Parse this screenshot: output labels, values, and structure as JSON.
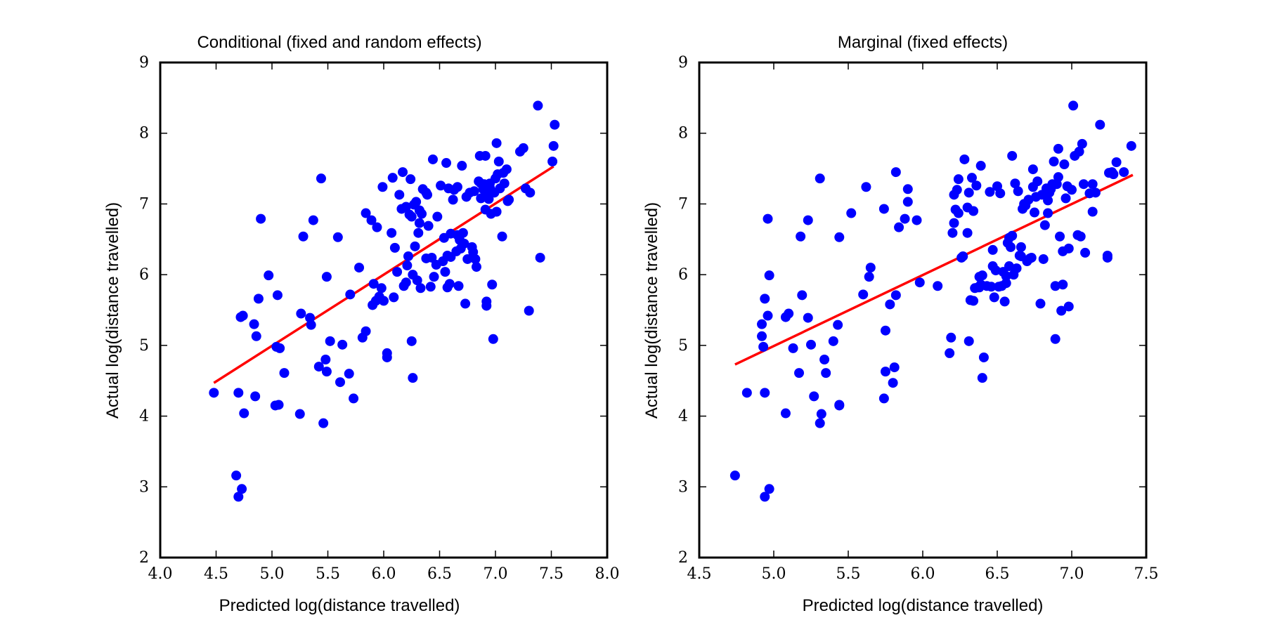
{
  "colors": {
    "points": "#0000ff",
    "fit_line": "#ff0000",
    "axes": "#000000"
  },
  "chart_data": [
    {
      "type": "scatter",
      "title": "Conditional (fixed and random effects)",
      "xlabel": "Predicted log(distance travelled)",
      "ylabel": "Actual log(distance travelled)",
      "xlim": [
        4.0,
        8.0
      ],
      "ylim": [
        2,
        9
      ],
      "xticks": [
        "4.0",
        "4.5",
        "5.0",
        "5.5",
        "6.0",
        "6.5",
        "7.0",
        "7.5",
        "8.0"
      ],
      "yticks": [
        "2",
        "3",
        "4",
        "5",
        "6",
        "7",
        "8",
        "9"
      ],
      "grid": false,
      "fit_line": {
        "x": [
          4.48,
          7.52
        ],
        "y": [
          4.47,
          7.53
        ]
      },
      "points": [
        [
          4.48,
          4.33
        ],
        [
          4.68,
          3.16
        ],
        [
          4.7,
          2.86
        ],
        [
          4.73,
          2.97
        ],
        [
          4.7,
          4.33
        ],
        [
          4.75,
          4.04
        ],
        [
          4.72,
          5.4
        ],
        [
          4.74,
          5.42
        ],
        [
          4.85,
          4.28
        ],
        [
          4.84,
          5.3
        ],
        [
          4.86,
          5.13
        ],
        [
          4.88,
          5.66
        ],
        [
          4.9,
          6.79
        ],
        [
          4.97,
          5.99
        ],
        [
          5.03,
          4.15
        ],
        [
          5.06,
          4.16
        ],
        [
          5.04,
          4.98
        ],
        [
          5.07,
          4.96
        ],
        [
          5.05,
          5.71
        ],
        [
          5.11,
          4.61
        ],
        [
          5.25,
          4.03
        ],
        [
          5.26,
          5.45
        ],
        [
          5.28,
          6.54
        ],
        [
          5.34,
          5.39
        ],
        [
          5.35,
          5.29
        ],
        [
          5.37,
          6.77
        ],
        [
          5.42,
          4.7
        ],
        [
          5.44,
          7.36
        ],
        [
          5.46,
          3.9
        ],
        [
          5.48,
          4.8
        ],
        [
          5.49,
          4.63
        ],
        [
          5.49,
          5.97
        ],
        [
          5.52,
          5.06
        ],
        [
          5.59,
          6.53
        ],
        [
          5.61,
          4.48
        ],
        [
          5.63,
          5.01
        ],
        [
          5.69,
          4.6
        ],
        [
          5.7,
          5.72
        ],
        [
          5.73,
          4.25
        ],
        [
          5.78,
          6.1
        ],
        [
          5.81,
          5.11
        ],
        [
          5.84,
          5.2
        ],
        [
          5.84,
          6.87
        ],
        [
          5.89,
          6.77
        ],
        [
          5.9,
          5.57
        ],
        [
          5.91,
          5.87
        ],
        [
          5.93,
          5.63
        ],
        [
          5.94,
          6.67
        ],
        [
          5.96,
          5.69
        ],
        [
          5.98,
          5.81
        ],
        [
          6.0,
          5.63
        ],
        [
          5.99,
          7.24
        ],
        [
          6.03,
          4.89
        ],
        [
          6.03,
          4.83
        ],
        [
          6.07,
          6.59
        ],
        [
          6.08,
          7.37
        ],
        [
          6.09,
          5.68
        ],
        [
          6.1,
          6.38
        ],
        [
          6.12,
          6.04
        ],
        [
          6.14,
          7.13
        ],
        [
          6.16,
          6.93
        ],
        [
          6.17,
          7.45
        ],
        [
          6.18,
          5.84
        ],
        [
          6.2,
          5.89
        ],
        [
          6.2,
          6.96
        ],
        [
          6.21,
          6.13
        ],
        [
          6.22,
          6.26
        ],
        [
          6.23,
          6.85
        ],
        [
          6.24,
          7.35
        ],
        [
          6.25,
          5.06
        ],
        [
          6.25,
          6.82
        ],
        [
          6.26,
          4.54
        ],
        [
          6.26,
          6.0
        ],
        [
          6.27,
          6.99
        ],
        [
          6.28,
          6.4
        ],
        [
          6.29,
          7.03
        ],
        [
          6.3,
          5.92
        ],
        [
          6.31,
          6.59
        ],
        [
          6.32,
          6.91
        ],
        [
          6.32,
          6.73
        ],
        [
          6.33,
          5.81
        ],
        [
          6.34,
          6.86
        ],
        [
          6.35,
          7.21
        ],
        [
          6.38,
          7.16
        ],
        [
          6.38,
          6.23
        ],
        [
          6.39,
          7.13
        ],
        [
          6.4,
          6.69
        ],
        [
          6.42,
          5.83
        ],
        [
          6.43,
          6.24
        ],
        [
          6.44,
          7.63
        ],
        [
          6.45,
          5.97
        ],
        [
          6.47,
          6.14
        ],
        [
          6.48,
          6.82
        ],
        [
          6.51,
          7.26
        ],
        [
          6.53,
          6.19
        ],
        [
          6.54,
          6.52
        ],
        [
          6.55,
          6.04
        ],
        [
          6.56,
          7.58
        ],
        [
          6.57,
          5.82
        ],
        [
          6.57,
          6.27
        ],
        [
          6.58,
          7.22
        ],
        [
          6.59,
          5.87
        ],
        [
          6.6,
          6.58
        ],
        [
          6.6,
          6.25
        ],
        [
          6.62,
          7.06
        ],
        [
          6.63,
          7.2
        ],
        [
          6.65,
          6.33
        ],
        [
          6.66,
          6.56
        ],
        [
          6.66,
          7.24
        ],
        [
          6.67,
          5.84
        ],
        [
          6.68,
          6.49
        ],
        [
          6.69,
          6.37
        ],
        [
          6.7,
          7.54
        ],
        [
          6.71,
          6.59
        ],
        [
          6.72,
          6.44
        ],
        [
          6.73,
          5.59
        ],
        [
          6.74,
          7.1
        ],
        [
          6.75,
          6.22
        ],
        [
          6.77,
          7.16
        ],
        [
          6.79,
          6.39
        ],
        [
          6.8,
          6.32
        ],
        [
          6.81,
          7.18
        ],
        [
          6.82,
          6.22
        ],
        [
          6.83,
          6.11
        ],
        [
          6.85,
          7.32
        ],
        [
          6.86,
          7.68
        ],
        [
          6.87,
          7.29
        ],
        [
          6.87,
          7.08
        ],
        [
          6.89,
          7.21
        ],
        [
          6.9,
          7.28
        ],
        [
          6.91,
          6.92
        ],
        [
          6.91,
          7.68
        ],
        [
          6.92,
          5.56
        ],
        [
          6.92,
          5.62
        ],
        [
          6.93,
          7.15
        ],
        [
          6.94,
          7.07
        ],
        [
          6.95,
          7.29
        ],
        [
          6.95,
          7.23
        ],
        [
          6.96,
          6.86
        ],
        [
          6.97,
          5.86
        ],
        [
          6.98,
          5.09
        ],
        [
          6.99,
          7.16
        ],
        [
          7.0,
          7.36
        ],
        [
          7.01,
          6.89
        ],
        [
          7.01,
          7.86
        ],
        [
          7.02,
          7.42
        ],
        [
          7.03,
          7.6
        ],
        [
          7.04,
          7.22
        ],
        [
          7.06,
          6.54
        ],
        [
          7.07,
          7.44
        ],
        [
          7.08,
          7.29
        ],
        [
          7.1,
          7.49
        ],
        [
          7.11,
          7.04
        ],
        [
          7.12,
          7.06
        ],
        [
          7.22,
          7.74
        ],
        [
          7.25,
          7.79
        ],
        [
          7.27,
          7.22
        ],
        [
          7.3,
          5.49
        ],
        [
          7.31,
          7.16
        ],
        [
          7.38,
          8.39
        ],
        [
          7.4,
          6.24
        ],
        [
          7.51,
          7.6
        ],
        [
          7.52,
          7.82
        ],
        [
          7.53,
          8.12
        ]
      ]
    },
    {
      "type": "scatter",
      "title": "Marginal (fixed effects)",
      "xlabel": "Predicted log(distance travelled)",
      "ylabel": "Actual log(distance travelled)",
      "xlim": [
        4.5,
        7.5
      ],
      "ylim": [
        2,
        9
      ],
      "xticks": [
        "4.5",
        "5.0",
        "5.5",
        "6.0",
        "6.5",
        "7.0",
        "7.5"
      ],
      "yticks": [
        "2",
        "3",
        "4",
        "5",
        "6",
        "7",
        "8",
        "9"
      ],
      "grid": false,
      "fit_line": {
        "x": [
          4.74,
          7.41
        ],
        "y": [
          4.73,
          7.41
        ]
      },
      "points": [
        [
          4.74,
          3.16
        ],
        [
          4.82,
          4.33
        ],
        [
          4.92,
          5.3
        ],
        [
          4.92,
          5.13
        ],
        [
          4.93,
          4.98
        ],
        [
          4.94,
          4.33
        ],
        [
          4.94,
          2.86
        ],
        [
          4.94,
          5.66
        ],
        [
          4.96,
          6.79
        ],
        [
          4.96,
          5.42
        ],
        [
          4.97,
          2.97
        ],
        [
          4.97,
          5.99
        ],
        [
          5.08,
          4.04
        ],
        [
          5.08,
          5.4
        ],
        [
          5.1,
          5.45
        ],
        [
          5.13,
          4.96
        ],
        [
          5.17,
          4.61
        ],
        [
          5.18,
          6.54
        ],
        [
          5.19,
          5.71
        ],
        [
          5.23,
          6.77
        ],
        [
          5.23,
          5.39
        ],
        [
          5.25,
          5.01
        ],
        [
          5.27,
          4.28
        ],
        [
          5.31,
          3.9
        ],
        [
          5.31,
          7.36
        ],
        [
          5.32,
          4.03
        ],
        [
          5.34,
          4.8
        ],
        [
          5.35,
          4.61
        ],
        [
          5.4,
          5.06
        ],
        [
          5.43,
          5.29
        ],
        [
          5.44,
          4.16
        ],
        [
          5.44,
          4.15
        ],
        [
          5.44,
          6.53
        ],
        [
          5.52,
          6.87
        ],
        [
          5.6,
          5.72
        ],
        [
          5.62,
          7.24
        ],
        [
          5.64,
          5.97
        ],
        [
          5.65,
          6.1
        ],
        [
          5.74,
          4.25
        ],
        [
          5.74,
          6.93
        ],
        [
          5.75,
          4.63
        ],
        [
          5.75,
          5.21
        ],
        [
          5.78,
          5.58
        ],
        [
          5.8,
          4.47
        ],
        [
          5.81,
          4.69
        ],
        [
          5.82,
          7.45
        ],
        [
          5.82,
          5.71
        ],
        [
          5.84,
          6.67
        ],
        [
          5.88,
          6.79
        ],
        [
          5.9,
          7.21
        ],
        [
          5.9,
          7.03
        ],
        [
          5.96,
          6.77
        ],
        [
          5.98,
          5.89
        ],
        [
          6.1,
          5.84
        ],
        [
          6.18,
          4.89
        ],
        [
          6.19,
          5.11
        ],
        [
          6.2,
          6.59
        ],
        [
          6.21,
          6.73
        ],
        [
          6.21,
          7.13
        ],
        [
          6.22,
          6.92
        ],
        [
          6.23,
          7.2
        ],
        [
          6.24,
          6.87
        ],
        [
          6.24,
          7.35
        ],
        [
          6.26,
          6.24
        ],
        [
          6.27,
          6.26
        ],
        [
          6.28,
          7.63
        ],
        [
          6.3,
          6.95
        ],
        [
          6.3,
          6.59
        ],
        [
          6.31,
          5.06
        ],
        [
          6.31,
          7.16
        ],
        [
          6.32,
          5.64
        ],
        [
          6.33,
          7.37
        ],
        [
          6.34,
          6.9
        ],
        [
          6.34,
          5.63
        ],
        [
          6.35,
          5.81
        ],
        [
          6.36,
          7.26
        ],
        [
          6.37,
          5.82
        ],
        [
          6.38,
          5.82
        ],
        [
          6.38,
          5.97
        ],
        [
          6.39,
          7.54
        ],
        [
          6.39,
          5.86
        ],
        [
          6.4,
          5.99
        ],
        [
          6.4,
          4.54
        ],
        [
          6.41,
          4.83
        ],
        [
          6.43,
          5.84
        ],
        [
          6.45,
          7.17
        ],
        [
          6.46,
          5.83
        ],
        [
          6.47,
          6.35
        ],
        [
          6.47,
          6.12
        ],
        [
          6.48,
          5.68
        ],
        [
          6.49,
          6.06
        ],
        [
          6.5,
          7.25
        ],
        [
          6.51,
          5.83
        ],
        [
          6.52,
          7.15
        ],
        [
          6.53,
          5.84
        ],
        [
          6.54,
          6.04
        ],
        [
          6.55,
          5.62
        ],
        [
          6.56,
          5.98
        ],
        [
          6.56,
          5.88
        ],
        [
          6.57,
          6.45
        ],
        [
          6.58,
          6.52
        ],
        [
          6.58,
          6.12
        ],
        [
          6.59,
          6.39
        ],
        [
          6.6,
          7.68
        ],
        [
          6.6,
          6.55
        ],
        [
          6.61,
          6.0
        ],
        [
          6.62,
          7.29
        ],
        [
          6.63,
          6.09
        ],
        [
          6.64,
          7.18
        ],
        [
          6.65,
          6.27
        ],
        [
          6.66,
          6.39
        ],
        [
          6.66,
          6.26
        ],
        [
          6.67,
          6.93
        ],
        [
          6.68,
          7.0
        ],
        [
          6.69,
          6.98
        ],
        [
          6.7,
          6.19
        ],
        [
          6.71,
          7.06
        ],
        [
          6.72,
          6.23
        ],
        [
          6.73,
          6.24
        ],
        [
          6.74,
          7.49
        ],
        [
          6.74,
          7.24
        ],
        [
          6.75,
          6.88
        ],
        [
          6.76,
          7.1
        ],
        [
          6.77,
          7.32
        ],
        [
          6.79,
          5.59
        ],
        [
          6.8,
          7.13
        ],
        [
          6.81,
          6.22
        ],
        [
          6.82,
          6.7
        ],
        [
          6.83,
          7.22
        ],
        [
          6.84,
          6.87
        ],
        [
          6.84,
          7.05
        ],
        [
          6.85,
          7.16
        ],
        [
          6.86,
          7.21
        ],
        [
          6.87,
          7.28
        ],
        [
          6.88,
          7.6
        ],
        [
          6.89,
          5.09
        ],
        [
          6.89,
          5.84
        ],
        [
          6.9,
          7.28
        ],
        [
          6.91,
          7.78
        ],
        [
          6.91,
          7.38
        ],
        [
          6.92,
          6.54
        ],
        [
          6.93,
          5.49
        ],
        [
          6.94,
          5.86
        ],
        [
          6.94,
          6.33
        ],
        [
          6.95,
          7.56
        ],
        [
          6.96,
          7.08
        ],
        [
          6.97,
          7.25
        ],
        [
          6.98,
          5.55
        ],
        [
          6.98,
          6.37
        ],
        [
          7.0,
          7.2
        ],
        [
          7.01,
          8.39
        ],
        [
          7.02,
          7.68
        ],
        [
          7.04,
          6.56
        ],
        [
          7.05,
          7.74
        ],
        [
          7.06,
          6.54
        ],
        [
          7.07,
          7.85
        ],
        [
          7.08,
          7.28
        ],
        [
          7.09,
          6.31
        ],
        [
          7.12,
          7.15
        ],
        [
          7.14,
          7.28
        ],
        [
          7.14,
          6.89
        ],
        [
          7.16,
          7.16
        ],
        [
          7.19,
          8.12
        ],
        [
          7.24,
          6.24
        ],
        [
          7.25,
          7.44
        ],
        [
          7.27,
          7.45
        ],
        [
          7.3,
          7.59
        ],
        [
          7.35,
          7.45
        ],
        [
          7.4,
          7.82
        ],
        [
          7.28,
          7.42
        ],
        [
          7.24,
          6.27
        ]
      ]
    }
  ]
}
